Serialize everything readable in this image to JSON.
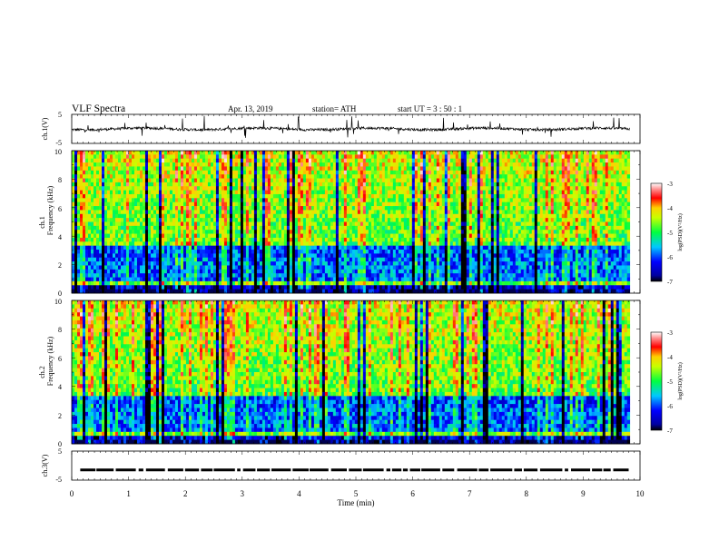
{
  "header": {
    "title": "VLF  Spectra",
    "date": "Apr. 13, 2019",
    "station": "station= ATH",
    "start": "start  UT  =    3  : 50 : 1"
  },
  "chart_data": [
    {
      "type": "line",
      "name": "ch1-waveform",
      "ylabel": "ch.1(V)",
      "yticks": [
        "5",
        "-5"
      ],
      "ylim": [
        -5,
        5
      ],
      "xlim": [
        0,
        10
      ],
      "baseline": 0,
      "extent_min": [
        0,
        9.82
      ]
    },
    {
      "type": "heatmap",
      "name": "ch1-spectrogram",
      "ylabel_top": "ch.1",
      "ylabel": "Frequency  (kHz)",
      "yticks": [
        "0",
        "2",
        "4",
        "6",
        "8",
        "10"
      ],
      "ylim": [
        0,
        10
      ],
      "xlim": [
        0,
        10
      ],
      "extent_min": [
        0,
        9.82
      ],
      "colorbar": {
        "ticks": [
          "-3",
          "-4",
          "-5",
          "-6",
          "-7"
        ],
        "range": [
          -7,
          -3
        ],
        "label": "log(PSD)(V²/Hz)"
      }
    },
    {
      "type": "heatmap",
      "name": "ch2-spectrogram",
      "ylabel_top": "ch.2",
      "ylabel": "Frequency  (kHz)",
      "yticks": [
        "0",
        "2",
        "4",
        "6",
        "8",
        "10"
      ],
      "ylim": [
        0,
        10
      ],
      "xlim": [
        0,
        10
      ],
      "extent_min": [
        0,
        9.82
      ],
      "colorbar": {
        "ticks": [
          "-3",
          "-4",
          "-5",
          "-6",
          "-7"
        ],
        "range": [
          -7,
          -3
        ],
        "label": "log(PSD)(V²/Hz)"
      }
    },
    {
      "type": "line",
      "name": "ch3-waveform",
      "ylabel": "ch.3(V)",
      "yticks": [
        "5",
        "-5"
      ],
      "ylim": [
        -5,
        5
      ],
      "xlim": [
        0,
        10
      ],
      "level": -1.5,
      "extent_min": [
        0.15,
        9.8
      ],
      "xlabel": "Time  (min)",
      "xticks": [
        "0",
        "1",
        "2",
        "3",
        "4",
        "5",
        "6",
        "7",
        "8",
        "9",
        "10"
      ]
    }
  ]
}
